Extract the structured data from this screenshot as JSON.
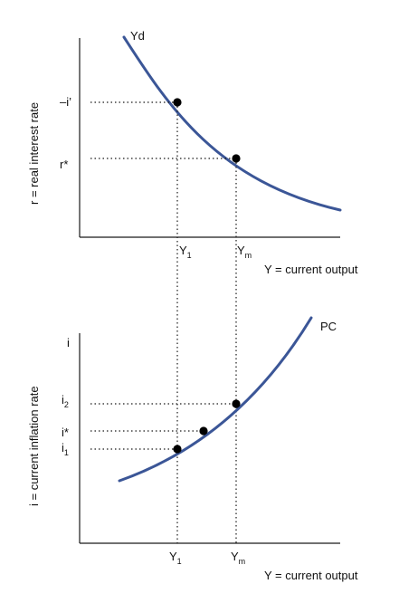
{
  "colors": {
    "curve": "#3b5697",
    "axis": "#1a1a1a",
    "points": "#000000"
  },
  "top_panel": {
    "curve_label": "Yd",
    "y_axis_label": "r = real interest rate",
    "x_axis_label": "Y = current output",
    "y_tick_labels": {
      "upper": "–i’",
      "lower": "r*"
    },
    "x_tick_labels": {
      "y1_main": "Y",
      "y1_sub": "1",
      "ym_main": "Y",
      "ym_sub": "m"
    }
  },
  "bottom_panel": {
    "curve_label": "PC",
    "y_axis_title": "i",
    "y_axis_label": "i = current inflation rate",
    "x_axis_label": "Y = current output",
    "y_tick_labels": {
      "i2_main": "i",
      "i2_sub": "2",
      "istar": "i*",
      "i1_main": "i",
      "i1_sub": "1"
    },
    "x_tick_labels": {
      "y1_main": "Y",
      "y1_sub": "1",
      "ym_main": "Y",
      "ym_sub": "m"
    }
  }
}
